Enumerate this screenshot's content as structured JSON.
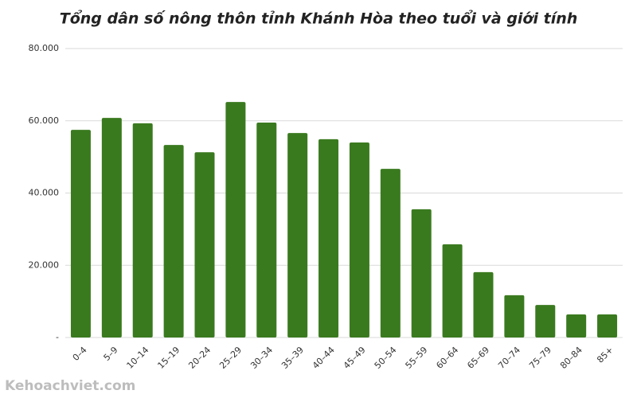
{
  "chart_data": {
    "type": "bar",
    "title": "Tổng dân số nông thôn tỉnh Khánh Hòa theo tuổi và giới tính",
    "categories": [
      "0–4",
      "5–9",
      "10–14",
      "15–19",
      "20–24",
      "25–29",
      "30–34",
      "35–39",
      "40–44",
      "45–49",
      "50–54",
      "55–59",
      "60–64",
      "65–69",
      "70–74",
      "75–79",
      "80–84",
      "85+"
    ],
    "values": [
      57500,
      60800,
      59300,
      53300,
      51300,
      65200,
      59500,
      56600,
      54900,
      54000,
      46700,
      35500,
      25800,
      18100,
      11700,
      9000,
      6400,
      6400
    ],
    "color": "#3a7a1f",
    "ylim": [
      0,
      80000
    ],
    "yticks": [
      {
        "value": 0,
        "label": "-"
      },
      {
        "value": 20000,
        "label": "20.000"
      },
      {
        "value": 40000,
        "label": "40.000"
      },
      {
        "value": 60000,
        "label": "60.000"
      },
      {
        "value": 80000,
        "label": "80.000"
      }
    ],
    "grid": true,
    "watermark": "Kehoachviet.com"
  }
}
